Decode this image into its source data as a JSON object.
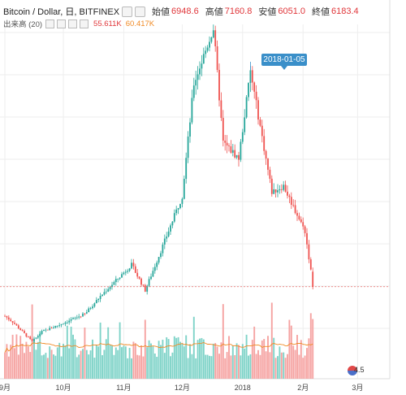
{
  "header": {
    "symbol": "Bitcoin / Dollar, 日, BITFINEX",
    "open_label": "始値",
    "open_value": "6948.6",
    "high_label": "高値",
    "high_value": "7160.8",
    "low_label": "安値",
    "low_value": "6051.0",
    "close_label": "終値",
    "close_value": "6183.4"
  },
  "volume_indicator": {
    "label": "出来高 (20)",
    "value1": "55.611K",
    "value2": "60.417K"
  },
  "annotation": {
    "date_label": "2018-01-05"
  },
  "volume_tag": "4.5",
  "colors": {
    "up": "#26a69a",
    "down": "#ef5350",
    "ma": "#f08a24",
    "grid": "#eeeeee"
  },
  "chart_data": {
    "type": "candlestick",
    "x_ticks": [
      "9月",
      "10月",
      "11月",
      "12月",
      "2018",
      "2月",
      "3月"
    ],
    "keypoints": [
      {
        "date": "2017-09-01",
        "close": 4700
      },
      {
        "date": "2017-09-05",
        "close": 4400
      },
      {
        "date": "2017-09-15",
        "close": 3400
      },
      {
        "date": "2017-09-20",
        "close": 3900
      },
      {
        "date": "2017-09-30",
        "close": 4300
      },
      {
        "date": "2017-10-12",
        "close": 4800
      },
      {
        "date": "2017-10-20",
        "close": 5700
      },
      {
        "date": "2017-11-05",
        "close": 7300
      },
      {
        "date": "2017-11-12",
        "close": 6000
      },
      {
        "date": "2017-11-20",
        "close": 8000
      },
      {
        "date": "2017-12-01",
        "close": 10800
      },
      {
        "date": "2017-12-07",
        "close": 16500
      },
      {
        "date": "2017-12-17",
        "close": 19300
      },
      {
        "date": "2017-12-22",
        "close": 13500
      },
      {
        "date": "2017-12-30",
        "close": 12700
      },
      {
        "date": "2018-01-05",
        "close": 17100
      },
      {
        "date": "2018-01-16",
        "close": 11000
      },
      {
        "date": "2018-01-22",
        "close": 11300
      },
      {
        "date": "2018-02-02",
        "close": 9000
      },
      {
        "date": "2018-02-05",
        "close": 7000
      },
      {
        "date": "2018-02-06",
        "close": 6183.4
      }
    ]
  }
}
